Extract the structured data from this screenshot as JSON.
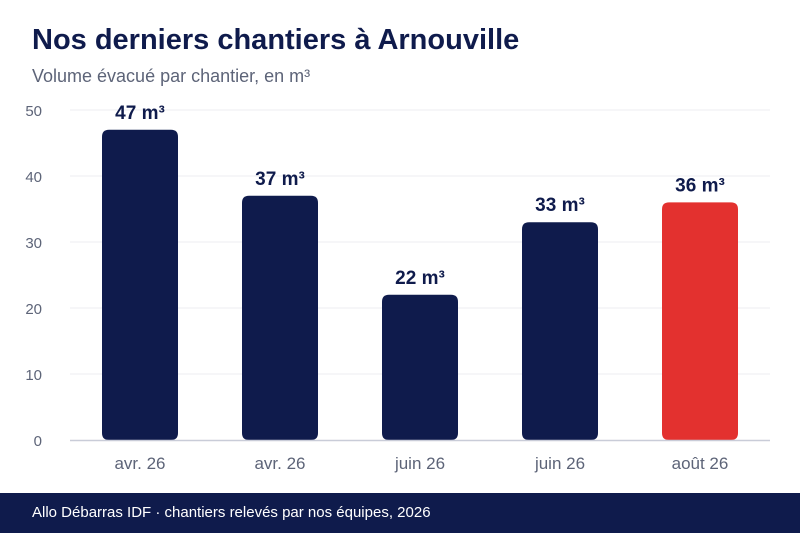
{
  "header": {
    "title": "Nos derniers chantiers à Arnouville",
    "subtitle": "Volume évacué par chantier, en m³"
  },
  "footer": {
    "source": "Allo Débarras IDF · chantiers relevés par nos équipes, 2026"
  },
  "colors": {
    "bar": "#0f1b4c",
    "highlight": "#e3312f",
    "grid": "#ececf0",
    "axis_text": "#5d6478",
    "label_text": "#0f1b4c"
  },
  "chart_data": {
    "type": "bar",
    "categories": [
      "avr. 26",
      "avr. 26",
      "juin 26",
      "juin 26",
      "août 26"
    ],
    "values": [
      47,
      37,
      22,
      33,
      36
    ],
    "data_labels": [
      "47 m³",
      "37 m³",
      "22 m³",
      "33 m³",
      "36 m³"
    ],
    "highlight_index": 4,
    "ylim": [
      0,
      50
    ],
    "yticks": [
      0,
      10,
      20,
      30,
      40,
      50
    ],
    "grid": true,
    "xlabel": "",
    "ylabel": ""
  }
}
